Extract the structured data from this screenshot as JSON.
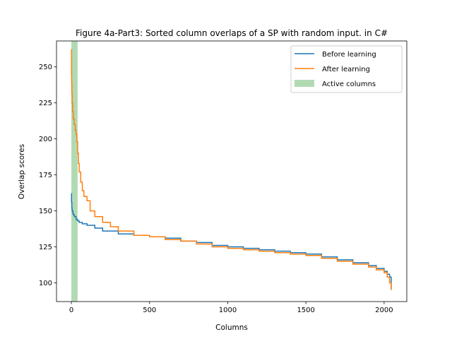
{
  "chart_data": {
    "type": "line",
    "title": "Figure 4a-Part3: Sorted column overlaps of a SP with random input. in C#",
    "xlabel": "Columns",
    "ylabel": "Overlap scores",
    "xlim": [
      -95,
      2145
    ],
    "ylim": [
      87,
      268
    ],
    "xticks": [
      0,
      500,
      1000,
      1500,
      2000
    ],
    "yticks": [
      100,
      125,
      150,
      175,
      200,
      225,
      250
    ],
    "legend_position": "top-right",
    "active_columns": {
      "name": "Active columns",
      "x_start": 0,
      "x_end": 40,
      "color": "#b2dab2"
    },
    "series": [
      {
        "name": "Before learning",
        "color": "#1f77b4",
        "x": [
          0,
          1,
          3,
          5,
          10,
          15,
          20,
          30,
          40,
          50,
          70,
          100,
          150,
          200,
          300,
          400,
          500,
          600,
          700,
          800,
          900,
          1000,
          1100,
          1200,
          1300,
          1400,
          1500,
          1600,
          1700,
          1800,
          1900,
          1950,
          2000,
          2020,
          2035,
          2045
        ],
        "values": [
          162,
          156,
          152,
          150,
          148,
          147,
          146,
          144,
          143,
          142,
          141,
          140,
          138,
          136,
          134,
          133,
          132,
          131,
          129,
          128,
          126,
          125,
          124,
          123,
          122,
          121,
          120,
          118,
          116,
          114,
          112,
          110,
          108,
          106,
          104,
          96
        ]
      },
      {
        "name": "After learning",
        "color": "#ff7f0e",
        "x": [
          0,
          1,
          2,
          3,
          5,
          8,
          12,
          18,
          25,
          30,
          35,
          40,
          45,
          50,
          60,
          70,
          80,
          100,
          120,
          150,
          200,
          250,
          300,
          400,
          500,
          600,
          700,
          800,
          900,
          1000,
          1100,
          1200,
          1300,
          1400,
          1500,
          1600,
          1700,
          1800,
          1900,
          1950,
          2000,
          2020,
          2035,
          2045
        ],
        "values": [
          262,
          245,
          238,
          232,
          225,
          219,
          214,
          210,
          206,
          203,
          198,
          190,
          183,
          177,
          170,
          164,
          160,
          157,
          150,
          146,
          142,
          139,
          136,
          133,
          132,
          130,
          129,
          127,
          125,
          124,
          123,
          122,
          121,
          120,
          119,
          117,
          115,
          113,
          111,
          109,
          107,
          104,
          100,
          95
        ]
      }
    ]
  }
}
